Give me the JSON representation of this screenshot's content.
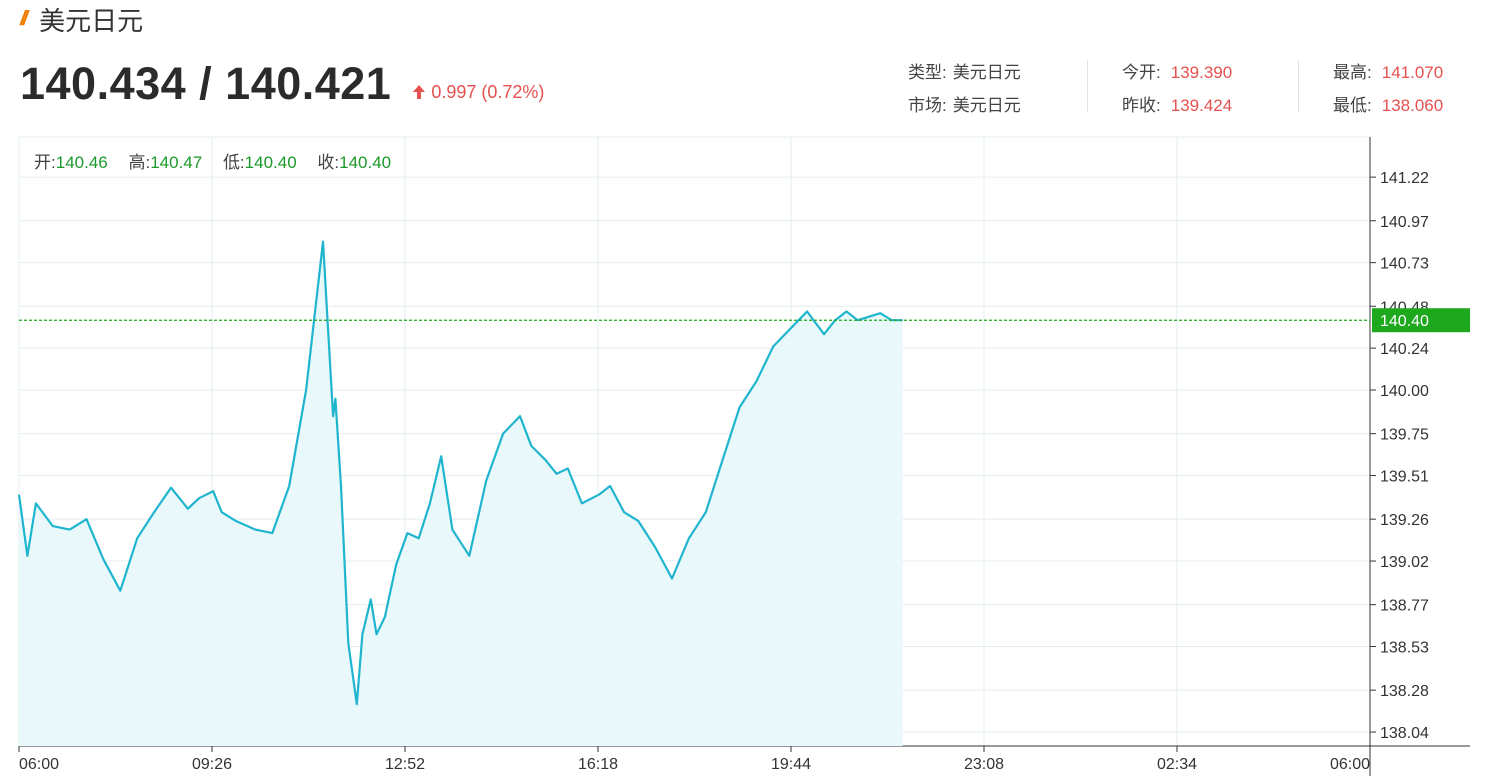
{
  "header": {
    "title": "美元日元",
    "bid_ask": "140.434 / 140.421",
    "change": "0.997 (0.72%)"
  },
  "stats": {
    "type_label": "类型:",
    "type_value": "美元日元",
    "market_label": "市场:",
    "market_value": "美元日元",
    "open_label": "今开:",
    "open_value": "139.390",
    "prev_close_label": "昨收:",
    "prev_close_value": "139.424",
    "high_label": "最高:",
    "high_value": "141.070",
    "low_label": "最低:",
    "low_value": "138.060"
  },
  "ohlc": {
    "open_label": "开:",
    "open": "140.46",
    "high_label": "高:",
    "high": "140.47",
    "low_label": "低:",
    "low": "140.40",
    "close_label": "收:",
    "close": "140.40"
  },
  "colors": {
    "line": "#1fb5cf",
    "fill": "#e9f8fa",
    "grid": "#e3eef0",
    "up": "#e6514f",
    "current_tag": "#1ea81e",
    "accent": "#f07d00"
  },
  "chart_data": {
    "type": "area",
    "x_ticks": [
      "06:00",
      "09:26",
      "12:52",
      "16:18",
      "19:44",
      "23:08",
      "02:34",
      "06:00"
    ],
    "y_ticks": [
      "141.22",
      "140.97",
      "140.73",
      "140.48",
      "140.24",
      "140.00",
      "139.75",
      "139.51",
      "139.26",
      "139.02",
      "138.77",
      "138.53",
      "138.28",
      "138.04"
    ],
    "ylim": [
      137.96,
      141.45
    ],
    "current_price": 140.4,
    "current_label": "140.40",
    "grid": true,
    "x_hours": [
      0,
      0.15,
      0.3,
      0.6,
      0.9,
      1.2,
      1.5,
      1.8,
      2.1,
      2.4,
      2.7,
      3.0,
      3.2,
      3.45,
      3.6,
      3.85,
      4.2,
      4.5,
      4.8,
      5.1,
      5.4,
      5.58,
      5.62,
      5.72,
      5.85,
      6.0,
      6.1,
      6.25,
      6.35,
      6.5,
      6.7,
      6.9,
      7.1,
      7.3,
      7.5,
      7.7,
      8.0,
      8.3,
      8.6,
      8.9,
      9.1,
      9.35,
      9.55,
      9.75,
      10.0,
      10.3,
      10.5,
      10.75,
      11.0,
      11.3,
      11.6,
      11.9,
      12.2,
      12.5,
      12.8,
      13.1,
      13.4,
      13.7,
      14.0,
      14.3,
      14.5,
      14.7,
      14.9,
      15.1,
      15.3,
      15.5,
      15.7
    ],
    "y_values": [
      139.4,
      139.05,
      139.35,
      139.22,
      139.2,
      139.26,
      139.03,
      138.85,
      139.15,
      139.3,
      139.44,
      139.32,
      139.38,
      139.42,
      139.3,
      139.25,
      139.2,
      139.18,
      139.45,
      140.0,
      140.85,
      139.85,
      139.95,
      139.45,
      138.55,
      138.2,
      138.6,
      138.8,
      138.6,
      138.7,
      139.0,
      139.18,
      139.15,
      139.35,
      139.62,
      139.2,
      139.05,
      139.48,
      139.75,
      139.85,
      139.68,
      139.6,
      139.52,
      139.55,
      139.35,
      139.4,
      139.45,
      139.3,
      139.25,
      139.1,
      138.92,
      139.15,
      139.3,
      139.6,
      139.9,
      140.05,
      140.25,
      140.35,
      140.45,
      140.32,
      140.4,
      140.45,
      140.4,
      140.42,
      140.44,
      140.4,
      140.4
    ]
  }
}
